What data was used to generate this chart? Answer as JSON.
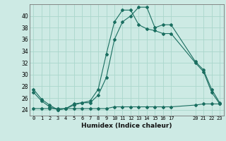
{
  "xlabel": "Humidex (Indice chaleur)",
  "background_color": "#cdeae4",
  "grid_color": "#aad6cc",
  "line_color": "#1a6e60",
  "x_ticks": [
    0,
    1,
    2,
    3,
    4,
    5,
    6,
    7,
    8,
    9,
    10,
    11,
    12,
    13,
    14,
    15,
    16,
    17,
    20,
    21,
    22,
    23
  ],
  "xlim": [
    -0.5,
    23.5
  ],
  "ylim": [
    23.0,
    42.0
  ],
  "y_ticks": [
    24,
    26,
    28,
    30,
    32,
    34,
    36,
    38,
    40
  ],
  "series1_x": [
    0,
    1,
    2,
    3,
    4,
    5,
    6,
    7,
    8,
    9,
    10,
    11,
    12,
    13,
    14,
    15,
    16,
    17,
    20,
    21,
    22,
    23
  ],
  "series1_y": [
    27.5,
    25.8,
    24.8,
    24.0,
    24.2,
    24.8,
    25.2,
    25.2,
    26.5,
    29.5,
    36.0,
    39.0,
    40.0,
    41.5,
    41.5,
    38.0,
    38.5,
    38.5,
    32.2,
    30.8,
    27.5,
    25.2
  ],
  "series2_x": [
    0,
    1,
    2,
    3,
    4,
    5,
    6,
    7,
    8,
    9,
    10,
    11,
    12,
    13,
    14,
    15,
    16,
    17,
    20,
    21,
    22,
    23
  ],
  "series2_y": [
    27.0,
    25.5,
    24.5,
    24.0,
    24.2,
    25.0,
    25.2,
    25.5,
    27.5,
    33.5,
    39.0,
    41.0,
    41.0,
    38.5,
    37.8,
    37.5,
    37.0,
    37.0,
    32.0,
    30.5,
    27.0,
    25.0
  ],
  "series3_x": [
    0,
    1,
    2,
    3,
    4,
    5,
    6,
    7,
    8,
    9,
    10,
    11,
    12,
    13,
    14,
    15,
    16,
    17,
    20,
    21,
    22,
    23
  ],
  "series3_y": [
    24.2,
    24.2,
    24.2,
    24.2,
    24.2,
    24.2,
    24.2,
    24.2,
    24.2,
    24.2,
    24.5,
    24.5,
    24.5,
    24.5,
    24.5,
    24.5,
    24.5,
    24.5,
    24.8,
    25.0,
    25.0,
    25.0
  ]
}
